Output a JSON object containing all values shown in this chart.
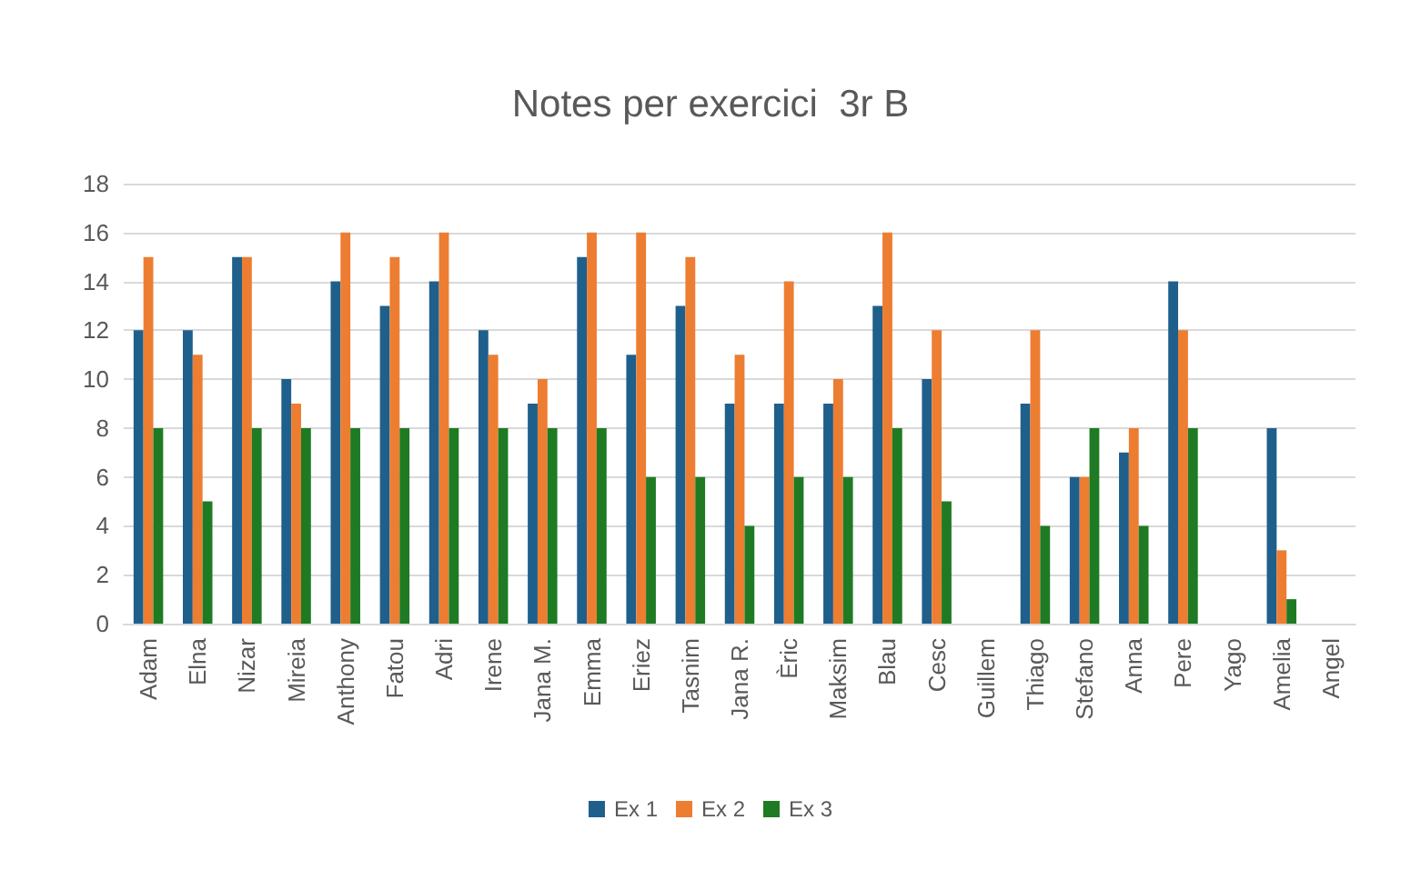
{
  "chart_data": {
    "type": "bar",
    "title": "Notes per exercici  3r B",
    "categories": [
      "Adam",
      "Elna",
      "Nizar",
      "Mireia",
      "Anthony",
      "Fatou",
      "Adri",
      "Irene",
      "Jana M.",
      "Emma",
      "Eriez",
      "Tasnim",
      "Jana R.",
      "Èric",
      "Maksim",
      "Blau",
      "Cesc",
      "Guillem",
      "Thiago",
      "Stefano",
      "Anna",
      "Pere",
      "Yago",
      "Amelia",
      "Angel"
    ],
    "series": [
      {
        "name": "Ex 1",
        "color": "#1f5f8b",
        "values": [
          12,
          12,
          15,
          10,
          14,
          13,
          14,
          12,
          9,
          15,
          11,
          13,
          9,
          9,
          9,
          13,
          10,
          null,
          9,
          6,
          7,
          14,
          null,
          8,
          null
        ]
      },
      {
        "name": "Ex 2",
        "color": "#ed7d31",
        "values": [
          15,
          11,
          15,
          9,
          16,
          15,
          16,
          11,
          10,
          16,
          16,
          15,
          11,
          14,
          10,
          16,
          12,
          null,
          12,
          6,
          8,
          12,
          null,
          3,
          null
        ]
      },
      {
        "name": "Ex 3",
        "color": "#1e7b23",
        "values": [
          8,
          5,
          8,
          8,
          8,
          8,
          8,
          8,
          8,
          8,
          6,
          6,
          4,
          6,
          6,
          8,
          5,
          null,
          4,
          8,
          4,
          8,
          null,
          1,
          null
        ]
      }
    ],
    "ylim": [
      0,
      18
    ],
    "yticks": [
      0,
      2,
      4,
      6,
      8,
      10,
      12,
      14,
      16,
      18
    ],
    "grid": "y",
    "legend": "bottom"
  }
}
